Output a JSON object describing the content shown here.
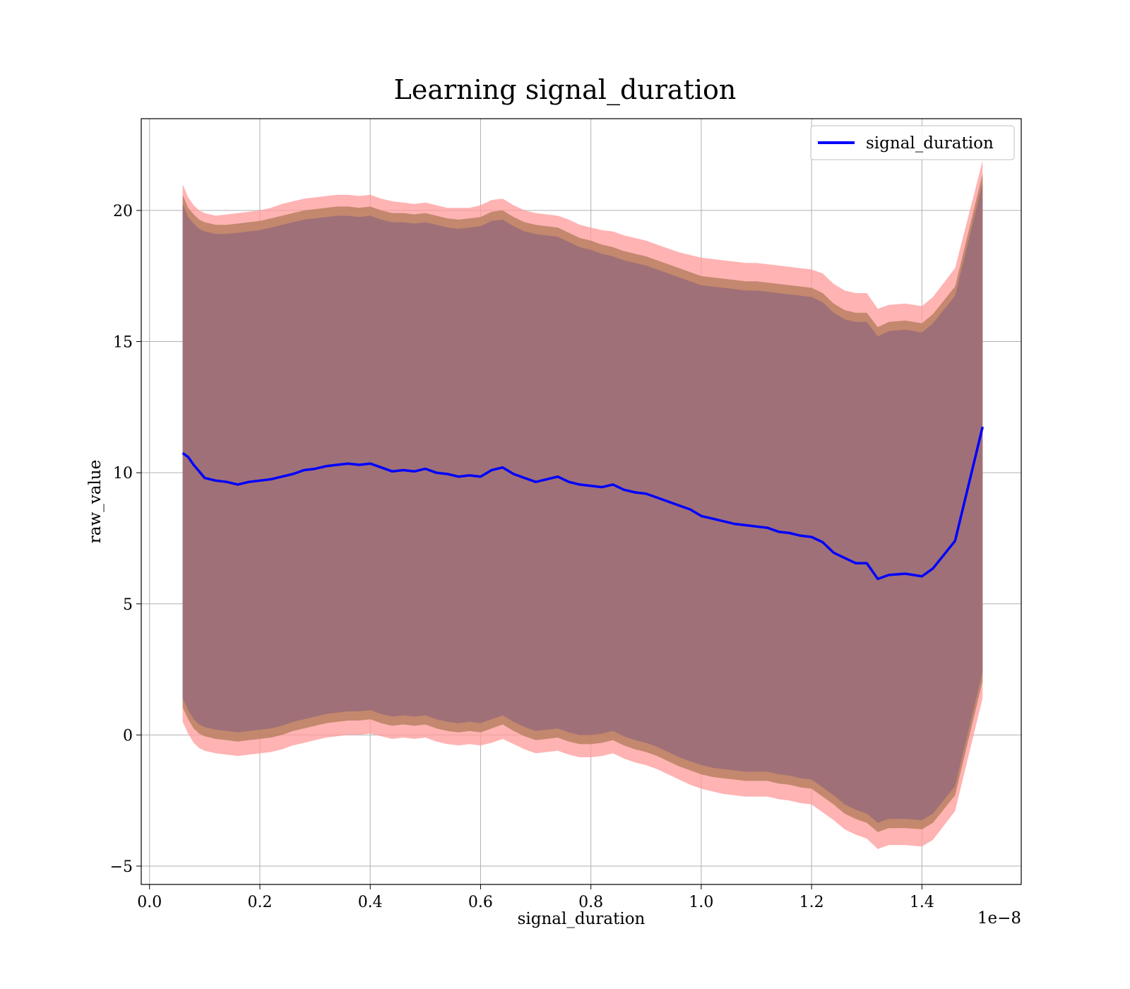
{
  "chart_data": {
    "type": "line",
    "title": "Learning signal_duration",
    "xlabel": "signal_duration",
    "ylabel": "raw_value",
    "x_offset_label": "1e−8",
    "xlim": [
      -0.015,
      1.58
    ],
    "ylim": [
      -5.7,
      23.5
    ],
    "grid": true,
    "legend_position": "top-right",
    "x_ticks": [
      0.0,
      0.2,
      0.4,
      0.6,
      0.8,
      1.0,
      1.2,
      1.4
    ],
    "x_tick_labels": [
      "0.0",
      "0.2",
      "0.4",
      "0.6",
      "0.8",
      "1.0",
      "1.2",
      "1.4"
    ],
    "y_ticks": [
      -5,
      0,
      5,
      10,
      15,
      20
    ],
    "y_tick_labels": [
      "−5",
      "0",
      "5",
      "10",
      "15",
      "20"
    ],
    "colors": {
      "line": "#0000ff",
      "band_outer": "#ff9999",
      "band_middle": "#b88060",
      "band_inner": "#a07078",
      "grid": "#b0b0b0"
    },
    "series": [
      {
        "name": "signal_duration",
        "x": [
          0.06,
          0.07,
          0.08,
          0.09,
          0.1,
          0.12,
          0.14,
          0.16,
          0.18,
          0.2,
          0.22,
          0.24,
          0.26,
          0.28,
          0.3,
          0.32,
          0.34,
          0.36,
          0.38,
          0.4,
          0.42,
          0.44,
          0.46,
          0.48,
          0.5,
          0.52,
          0.54,
          0.56,
          0.58,
          0.6,
          0.62,
          0.64,
          0.66,
          0.68,
          0.7,
          0.72,
          0.74,
          0.76,
          0.78,
          0.8,
          0.82,
          0.84,
          0.86,
          0.88,
          0.9,
          0.92,
          0.94,
          0.96,
          0.98,
          1.0,
          1.02,
          1.04,
          1.06,
          1.08,
          1.1,
          1.12,
          1.14,
          1.16,
          1.18,
          1.2,
          1.22,
          1.24,
          1.26,
          1.28,
          1.3,
          1.32,
          1.34,
          1.37,
          1.4,
          1.42,
          1.46,
          1.51
        ],
        "values": [
          10.75,
          10.6,
          10.3,
          10.05,
          9.8,
          9.7,
          9.65,
          9.55,
          9.65,
          9.7,
          9.75,
          9.85,
          9.95,
          10.1,
          10.15,
          10.25,
          10.3,
          10.35,
          10.3,
          10.35,
          10.2,
          10.05,
          10.1,
          10.05,
          10.15,
          10.0,
          9.95,
          9.85,
          9.9,
          9.85,
          10.1,
          10.2,
          9.95,
          9.8,
          9.65,
          9.75,
          9.85,
          9.65,
          9.55,
          9.5,
          9.45,
          9.55,
          9.35,
          9.25,
          9.2,
          9.05,
          8.9,
          8.75,
          8.6,
          8.35,
          8.25,
          8.15,
          8.05,
          8.0,
          7.95,
          7.9,
          7.75,
          7.7,
          7.6,
          7.55,
          7.35,
          6.95,
          6.75,
          6.55,
          6.55,
          5.95,
          6.1,
          6.15,
          6.05,
          6.35,
          7.4,
          11.75
        ],
        "band_outer_upper": [
          21.0,
          20.5,
          20.2,
          20.0,
          19.9,
          19.8,
          19.85,
          19.9,
          19.95,
          20.0,
          20.1,
          20.25,
          20.35,
          20.45,
          20.5,
          20.55,
          20.6,
          20.6,
          20.55,
          20.6,
          20.45,
          20.35,
          20.3,
          20.25,
          20.3,
          20.2,
          20.1,
          20.1,
          20.1,
          20.2,
          20.4,
          20.45,
          20.2,
          20.0,
          19.9,
          19.85,
          19.8,
          19.65,
          19.45,
          19.35,
          19.25,
          19.2,
          19.05,
          18.95,
          18.85,
          18.7,
          18.55,
          18.4,
          18.3,
          18.2,
          18.15,
          18.1,
          18.05,
          18.0,
          18.0,
          17.95,
          17.9,
          17.85,
          17.8,
          17.75,
          17.6,
          17.2,
          16.95,
          16.85,
          16.85,
          16.25,
          16.4,
          16.45,
          16.35,
          16.7,
          17.8,
          21.9
        ],
        "band_outer_lower": [
          0.5,
          0.05,
          -0.3,
          -0.5,
          -0.6,
          -0.7,
          -0.75,
          -0.8,
          -0.75,
          -0.7,
          -0.65,
          -0.55,
          -0.4,
          -0.3,
          -0.2,
          -0.1,
          -0.05,
          0.0,
          0.0,
          0.05,
          -0.05,
          -0.15,
          -0.1,
          -0.15,
          -0.1,
          -0.25,
          -0.35,
          -0.4,
          -0.35,
          -0.4,
          -0.3,
          -0.15,
          -0.35,
          -0.55,
          -0.7,
          -0.65,
          -0.6,
          -0.75,
          -0.85,
          -0.85,
          -0.8,
          -0.7,
          -0.9,
          -1.05,
          -1.15,
          -1.3,
          -1.5,
          -1.7,
          -1.9,
          -2.05,
          -2.15,
          -2.25,
          -2.3,
          -2.35,
          -2.35,
          -2.35,
          -2.45,
          -2.5,
          -2.6,
          -2.65,
          -2.95,
          -3.25,
          -3.6,
          -3.8,
          -3.95,
          -4.35,
          -4.2,
          -4.2,
          -4.25,
          -4.0,
          -2.9,
          1.4
        ],
        "band_middle_upper": [
          20.6,
          20.1,
          19.85,
          19.65,
          19.55,
          19.45,
          19.45,
          19.5,
          19.55,
          19.6,
          19.7,
          19.8,
          19.9,
          20.0,
          20.05,
          20.1,
          20.15,
          20.15,
          20.1,
          20.15,
          20.0,
          19.9,
          19.9,
          19.85,
          19.9,
          19.8,
          19.7,
          19.65,
          19.7,
          19.75,
          19.95,
          20.0,
          19.75,
          19.55,
          19.45,
          19.4,
          19.35,
          19.15,
          18.95,
          18.85,
          18.7,
          18.6,
          18.45,
          18.35,
          18.25,
          18.1,
          17.95,
          17.8,
          17.65,
          17.5,
          17.45,
          17.4,
          17.35,
          17.3,
          17.3,
          17.25,
          17.2,
          17.15,
          17.1,
          17.05,
          16.85,
          16.45,
          16.2,
          16.1,
          16.1,
          15.55,
          15.75,
          15.8,
          15.7,
          16.05,
          17.1,
          21.4
        ],
        "band_middle_lower": [
          1.05,
          0.6,
          0.25,
          0.05,
          -0.05,
          -0.15,
          -0.2,
          -0.25,
          -0.2,
          -0.15,
          -0.1,
          0.0,
          0.15,
          0.25,
          0.35,
          0.45,
          0.5,
          0.55,
          0.55,
          0.6,
          0.45,
          0.35,
          0.4,
          0.35,
          0.4,
          0.25,
          0.15,
          0.1,
          0.15,
          0.1,
          0.25,
          0.4,
          0.15,
          -0.05,
          -0.2,
          -0.15,
          -0.1,
          -0.25,
          -0.35,
          -0.35,
          -0.3,
          -0.2,
          -0.4,
          -0.55,
          -0.65,
          -0.8,
          -1.0,
          -1.2,
          -1.35,
          -1.5,
          -1.6,
          -1.65,
          -1.7,
          -1.75,
          -1.75,
          -1.75,
          -1.85,
          -1.9,
          -2.0,
          -2.05,
          -2.35,
          -2.65,
          -3.0,
          -3.2,
          -3.35,
          -3.7,
          -3.55,
          -3.55,
          -3.6,
          -3.35,
          -2.3,
          2.05
        ]
      }
    ],
    "legend": [
      "signal_duration"
    ]
  }
}
